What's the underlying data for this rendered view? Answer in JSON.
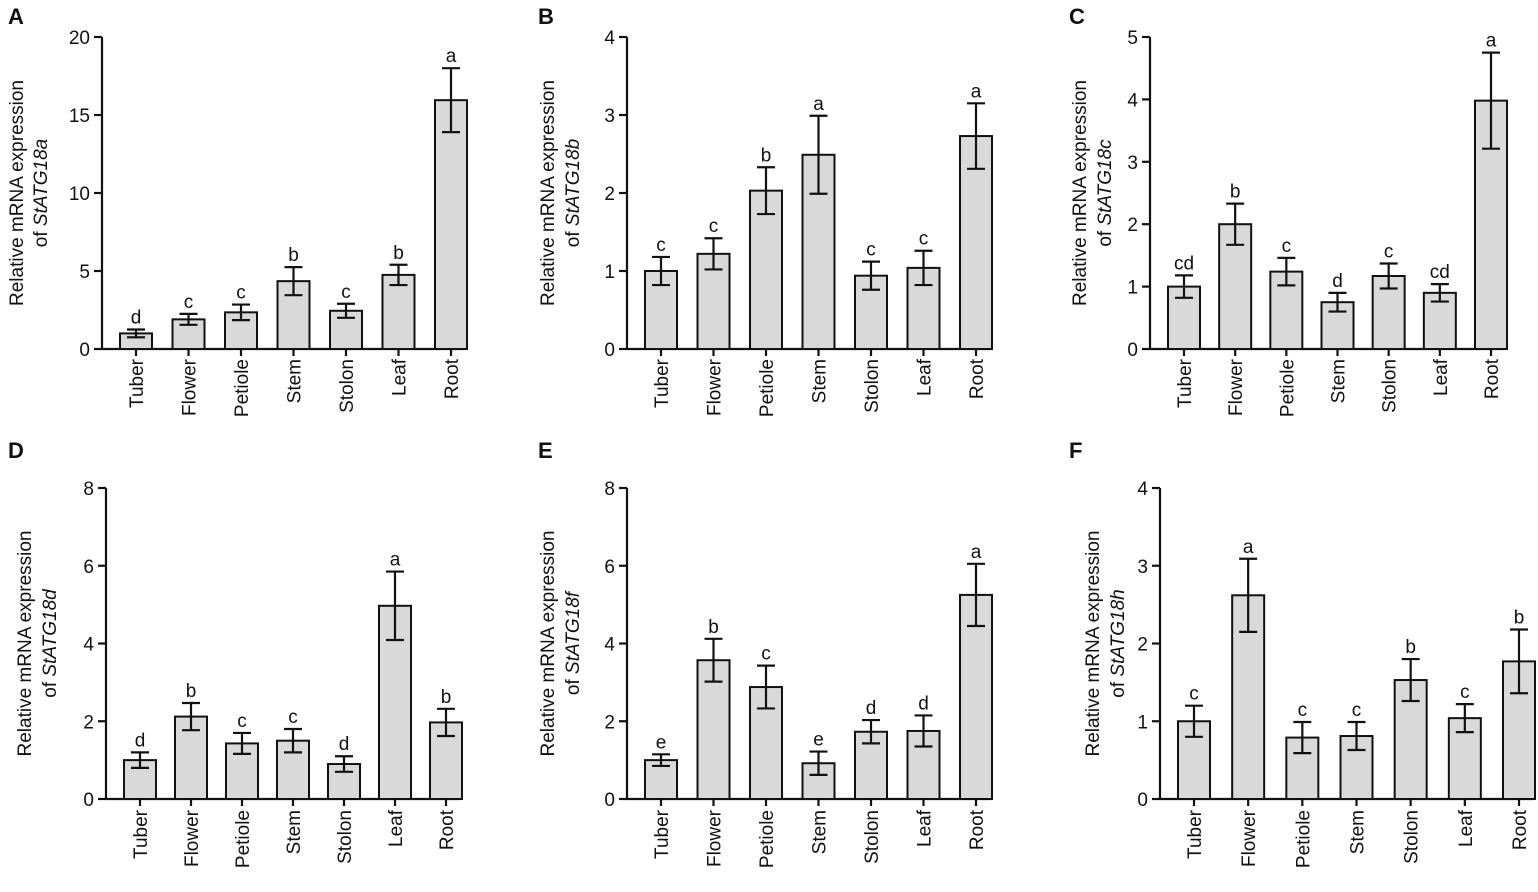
{
  "figure": {
    "colors": {
      "bar_fill": "#d9d9d9",
      "stroke": "#111111",
      "background": "#ffffff"
    }
  },
  "chart_data": [
    {
      "panel": "A",
      "type": "bar",
      "ylabel_prefix": "Relative mRNA expression",
      "ylabel_of": "of",
      "gene": "StATG18a",
      "categories": [
        "Tuber",
        "Flower",
        "Petiole",
        "Stem",
        "Stolon",
        "Leaf",
        "Root"
      ],
      "values": [
        1.0,
        1.9,
        2.35,
        4.35,
        2.45,
        4.75,
        15.95
      ],
      "errors": [
        0.25,
        0.35,
        0.5,
        0.9,
        0.45,
        0.65,
        2.05
      ],
      "letters": [
        "d",
        "c",
        "c",
        "b",
        "c",
        "b",
        "a"
      ],
      "ylim": [
        0,
        20
      ],
      "yticks": [
        0,
        5,
        10,
        15,
        20
      ]
    },
    {
      "panel": "B",
      "type": "bar",
      "ylabel_prefix": "Relative mRNA expression",
      "ylabel_of": "of",
      "gene": "StATG18b",
      "categories": [
        "Tuber",
        "Flower",
        "Petiole",
        "Stem",
        "Stolon",
        "Leaf",
        "Root"
      ],
      "values": [
        1.0,
        1.22,
        2.03,
        2.49,
        0.94,
        1.04,
        2.73
      ],
      "errors": [
        0.18,
        0.2,
        0.3,
        0.5,
        0.18,
        0.22,
        0.42
      ],
      "letters": [
        "c",
        "c",
        "b",
        "a",
        "c",
        "c",
        "a"
      ],
      "ylim": [
        0,
        4
      ],
      "yticks": [
        0,
        1,
        2,
        3,
        4
      ]
    },
    {
      "panel": "C",
      "type": "bar",
      "ylabel_prefix": "Relative mRNA expression",
      "ylabel_of": "of",
      "gene": "StATG18c",
      "categories": [
        "Tuber",
        "Flower",
        "Petiole",
        "Stem",
        "Stolon",
        "Leaf",
        "Root"
      ],
      "values": [
        1.0,
        2.0,
        1.24,
        0.75,
        1.17,
        0.9,
        3.98
      ],
      "errors": [
        0.18,
        0.33,
        0.22,
        0.15,
        0.2,
        0.14,
        0.77
      ],
      "letters": [
        "cd",
        "b",
        "c",
        "d",
        "c",
        "cd",
        "a"
      ],
      "ylim": [
        0,
        5
      ],
      "yticks": [
        0,
        1,
        2,
        3,
        4,
        5
      ]
    },
    {
      "panel": "D",
      "type": "bar",
      "ylabel_prefix": "Relative mRNA expression",
      "ylabel_of": "of",
      "gene": "StATG18d",
      "categories": [
        "Tuber",
        "Flower",
        "Petiole",
        "Stem",
        "Stolon",
        "Leaf",
        "Root"
      ],
      "values": [
        1.0,
        2.12,
        1.43,
        1.5,
        0.9,
        4.97,
        1.97
      ],
      "errors": [
        0.2,
        0.35,
        0.27,
        0.3,
        0.2,
        0.88,
        0.35
      ],
      "letters": [
        "d",
        "b",
        "c",
        "c",
        "d",
        "a",
        "b"
      ],
      "ylim": [
        0,
        8
      ],
      "yticks": [
        0,
        2,
        4,
        6,
        8
      ]
    },
    {
      "panel": "E",
      "type": "bar",
      "ylabel_prefix": "Relative mRNA expression",
      "ylabel_of": "of",
      "gene": "StATG18f",
      "categories": [
        "Tuber",
        "Flower",
        "Petiole",
        "Stem",
        "Stolon",
        "Leaf",
        "Root"
      ],
      "values": [
        1.0,
        3.57,
        2.88,
        0.92,
        1.73,
        1.75,
        5.25
      ],
      "errors": [
        0.15,
        0.55,
        0.55,
        0.3,
        0.3,
        0.4,
        0.8
      ],
      "letters": [
        "e",
        "b",
        "c",
        "e",
        "d",
        "d",
        "a"
      ],
      "ylim": [
        0,
        8
      ],
      "yticks": [
        0,
        2,
        4,
        6,
        8
      ]
    },
    {
      "panel": "F",
      "type": "bar",
      "ylabel_prefix": "Relative mRNA expression",
      "ylabel_of": "of",
      "gene": "StATG18h",
      "categories": [
        "Tuber",
        "Flower",
        "Petiole",
        "Stem",
        "Stolon",
        "Leaf",
        "Root"
      ],
      "values": [
        1.0,
        2.62,
        0.79,
        0.81,
        1.53,
        1.04,
        1.77
      ],
      "errors": [
        0.2,
        0.47,
        0.2,
        0.18,
        0.27,
        0.18,
        0.41
      ],
      "letters": [
        "c",
        "a",
        "c",
        "c",
        "b",
        "c",
        "b"
      ],
      "ylim": [
        0,
        4
      ],
      "yticks": [
        0,
        1,
        2,
        3,
        4
      ]
    }
  ]
}
